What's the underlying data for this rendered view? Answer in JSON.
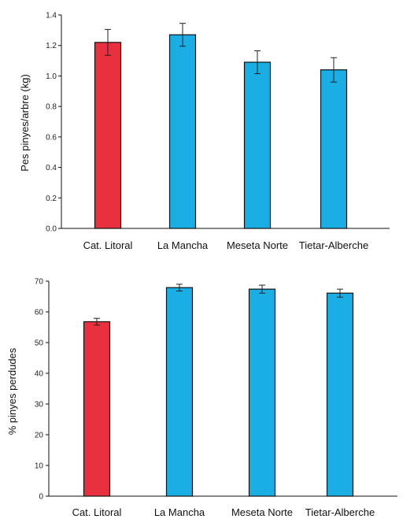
{
  "chart_data": [
    {
      "type": "bar",
      "categories": [
        "Cat. Litoral",
        "La Mancha",
        "Meseta Norte",
        "Tietar-Alberche"
      ],
      "values": [
        1.22,
        1.27,
        1.09,
        1.04
      ],
      "errors": [
        0.085,
        0.075,
        0.075,
        0.08
      ],
      "ylabel": "Pes pinyes/arbre (kg)",
      "ylim": [
        0,
        1.4
      ],
      "yticks": [
        "0.0",
        "0.2",
        "0.4",
        "0.6",
        "0.8",
        "1.0",
        "1.2",
        "1.4"
      ],
      "colors": [
        "#e8303f",
        "#1aaee4",
        "#1aaee4",
        "#1aaee4"
      ],
      "grid": false
    },
    {
      "type": "bar",
      "categories": [
        "Cat. Litoral",
        "La Mancha",
        "Meseta Norte",
        "Tietar-Alberche"
      ],
      "values": [
        56.8,
        67.9,
        67.4,
        66.1
      ],
      "errors": [
        1.1,
        1.1,
        1.3,
        1.3
      ],
      "ylabel": "% pinyes perdudes",
      "ylim": [
        0,
        70
      ],
      "yticks": [
        "0",
        "10",
        "20",
        "30",
        "40",
        "50",
        "60",
        "70"
      ],
      "colors": [
        "#e8303f",
        "#1aaee4",
        "#1aaee4",
        "#1aaee4"
      ],
      "grid": false
    }
  ]
}
